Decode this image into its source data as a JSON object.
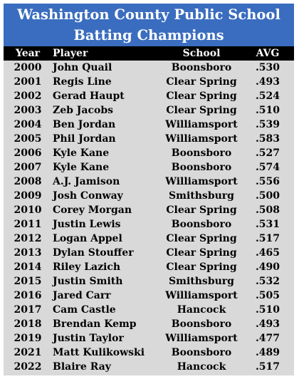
{
  "title": {
    "line1": "Washington County Public School",
    "line2": "Batting Champions"
  },
  "columns": {
    "year": "Year",
    "player": "Player",
    "school": "School",
    "avg": "AVG"
  },
  "colors": {
    "title_bg": "#3a6dbf",
    "title_text": "#ffffff",
    "header_bg": "#000000",
    "body_bg": "#d9d9d9"
  },
  "rows": [
    {
      "year": "2000",
      "player": "John Quail",
      "school": "Boonsboro",
      "avg": ".530"
    },
    {
      "year": "2001",
      "player": "Regis Line",
      "school": "Clear Spring",
      "avg": ".493"
    },
    {
      "year": "2002",
      "player": "Gerad Haupt",
      "school": "Clear Spring",
      "avg": ".524"
    },
    {
      "year": "2003",
      "player": "Zeb Jacobs",
      "school": "Clear Spring",
      "avg": ".510"
    },
    {
      "year": "2004",
      "player": "Ben Jordan",
      "school": "Williamsport",
      "avg": ".539"
    },
    {
      "year": "2005",
      "player": "Phil Jordan",
      "school": "Williamsport",
      "avg": ".583"
    },
    {
      "year": "2006",
      "player": "Kyle Kane",
      "school": "Boonsboro",
      "avg": ".527"
    },
    {
      "year": "2007",
      "player": "Kyle Kane",
      "school": "Boonsboro",
      "avg": ".574"
    },
    {
      "year": "2008",
      "player": "A.J. Jamison",
      "school": "Williamsport",
      "avg": ".556"
    },
    {
      "year": "2009",
      "player": "Josh Conway",
      "school": "Smithsburg",
      "avg": ".500"
    },
    {
      "year": "2010",
      "player": "Corey Morgan",
      "school": "Clear Spring",
      "avg": ".508"
    },
    {
      "year": "2011",
      "player": "Justin Lewis",
      "school": "Boonsboro",
      "avg": ".531"
    },
    {
      "year": "2012",
      "player": "Logan Appel",
      "school": "Clear Spring",
      "avg": ".517"
    },
    {
      "year": "2013",
      "player": "Dylan Stouffer",
      "school": "Clear Spring",
      "avg": ".465"
    },
    {
      "year": "2014",
      "player": "Riley Lazich",
      "school": "Clear Spring",
      "avg": ".490"
    },
    {
      "year": "2015",
      "player": "Justin Smith",
      "school": "Smithsburg",
      "avg": ".532"
    },
    {
      "year": "2016",
      "player": "Jared Carr",
      "school": "Williamsport",
      "avg": ".505"
    },
    {
      "year": "2017",
      "player": "Cam Castle",
      "school": "Hancock",
      "avg": ".510"
    },
    {
      "year": "2018",
      "player": "Brendan Kemp",
      "school": "Boonsboro",
      "avg": ".493"
    },
    {
      "year": "2019",
      "player": "Justin Taylor",
      "school": "Williamsport",
      "avg": ".477"
    },
    {
      "year": "2021",
      "player": "Matt Kulikowski",
      "school": "Boonsboro",
      "avg": ".489"
    },
    {
      "year": "2022",
      "player": "Blaire Ray",
      "school": "Hancock",
      "avg": ".517"
    }
  ]
}
